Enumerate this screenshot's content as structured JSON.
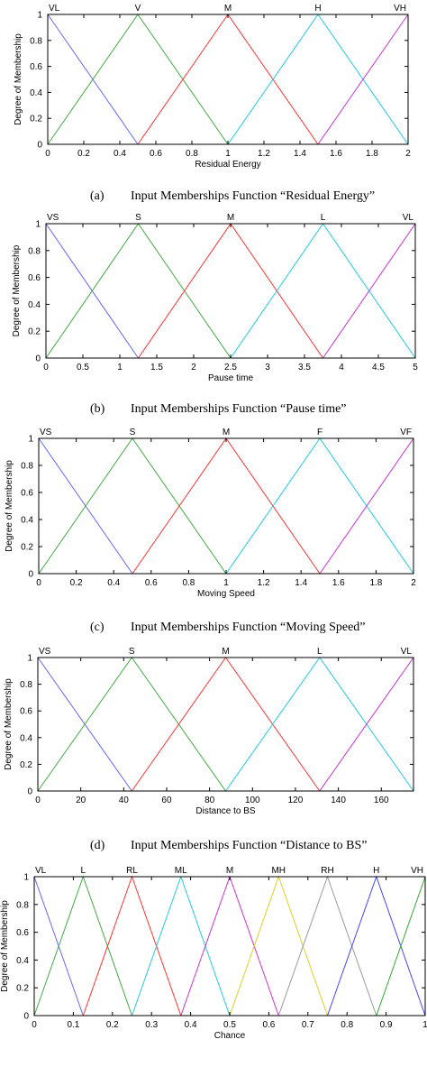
{
  "chart_data": [
    {
      "type": "line",
      "caption_id": "(a)",
      "caption_text": "Input Memberships Function “Residual Energy”",
      "xlabel": "Residual Energy",
      "ylabel": "Degree of Membership",
      "xlim": [
        0,
        2
      ],
      "ylim": [
        0,
        1
      ],
      "xticks": [
        0,
        0.2,
        0.4,
        0.6,
        0.8,
        1,
        1.2,
        1.4,
        1.6,
        1.8,
        2
      ],
      "xtick_labels": [
        "0",
        "0.2",
        "0.4",
        "0.6",
        "0.8",
        "1",
        "1.2",
        "1.4",
        "1.6",
        "1.8",
        "2"
      ],
      "yticks": [
        0,
        0.2,
        0.4,
        0.6,
        0.8,
        1
      ],
      "ytick_labels": [
        "0",
        "0.2",
        "0.4",
        "0.6",
        "0.8",
        "1"
      ],
      "series": [
        {
          "name": "VL",
          "color": "#6666ff",
          "x": [
            0,
            0.5,
            2
          ],
          "y": [
            1,
            0,
            0
          ]
        },
        {
          "name": "V",
          "color": "#44aa44",
          "x": [
            0,
            0.5,
            1,
            2
          ],
          "y": [
            0,
            1,
            0,
            0
          ]
        },
        {
          "name": "M",
          "color": "#ff3333",
          "x": [
            0,
            0.5,
            1,
            1.5,
            2
          ],
          "y": [
            0,
            0,
            1,
            0,
            0
          ]
        },
        {
          "name": "H",
          "color": "#22ccdd",
          "x": [
            0,
            1,
            1.5,
            2
          ],
          "y": [
            0,
            0,
            1,
            0
          ]
        },
        {
          "name": "VH",
          "color": "#cc33cc",
          "x": [
            0,
            1.5,
            2
          ],
          "y": [
            0,
            0,
            1
          ]
        }
      ]
    },
    {
      "type": "line",
      "caption_id": "(b)",
      "caption_text": "Input Memberships Function “Pause time”",
      "xlabel": "Pause time",
      "ylabel": "Degree of Membership",
      "xlim": [
        0,
        5
      ],
      "ylim": [
        0,
        1
      ],
      "xticks": [
        0,
        0.5,
        1,
        1.5,
        2,
        2.5,
        3,
        3.5,
        4,
        4.5,
        5
      ],
      "xtick_labels": [
        "0",
        "0.5",
        "1",
        "1.5",
        "2",
        "2.5",
        "3",
        "3.5",
        "4",
        "4.5",
        "5"
      ],
      "yticks": [
        0,
        0.2,
        0.4,
        0.6,
        0.8,
        1
      ],
      "ytick_labels": [
        "0",
        "0.2",
        "0.4",
        "0.6",
        "0.8",
        "1"
      ],
      "series": [
        {
          "name": "VS",
          "color": "#6666ff",
          "x": [
            0,
            1.25,
            5
          ],
          "y": [
            1,
            0,
            0
          ]
        },
        {
          "name": "S",
          "color": "#44aa44",
          "x": [
            0,
            1.25,
            2.5,
            5
          ],
          "y": [
            0,
            1,
            0,
            0
          ]
        },
        {
          "name": "M",
          "color": "#ff3333",
          "x": [
            0,
            1.25,
            2.5,
            3.75,
            5
          ],
          "y": [
            0,
            0,
            1,
            0,
            0
          ]
        },
        {
          "name": "L",
          "color": "#22ccdd",
          "x": [
            0,
            2.5,
            3.75,
            5
          ],
          "y": [
            0,
            0,
            1,
            0
          ]
        },
        {
          "name": "VL",
          "color": "#cc33cc",
          "x": [
            0,
            3.75,
            5
          ],
          "y": [
            0,
            0,
            1
          ]
        }
      ]
    },
    {
      "type": "line",
      "caption_id": "(c)",
      "caption_text": "Input Memberships Function “Moving Speed”",
      "xlabel": "Moving Speed",
      "ylabel": "Degree of Membership",
      "xlim": [
        0,
        2
      ],
      "ylim": [
        0,
        1
      ],
      "xticks": [
        0,
        0.2,
        0.4,
        0.6,
        0.8,
        1,
        1.2,
        1.4,
        1.6,
        1.8,
        2
      ],
      "xtick_labels": [
        "0",
        "0.2",
        "0.4",
        "0.6",
        "0.8",
        "1",
        "1.2",
        "1.4",
        "1.6",
        "1.8",
        "2"
      ],
      "yticks": [
        0,
        0.2,
        0.4,
        0.6,
        0.8,
        1
      ],
      "ytick_labels": [
        "0",
        "0.2",
        "0.4",
        "0.6",
        "0.8",
        "1"
      ],
      "series": [
        {
          "name": "VS",
          "color": "#6666ff",
          "x": [
            0,
            0.5,
            2
          ],
          "y": [
            1,
            0,
            0
          ]
        },
        {
          "name": "S",
          "color": "#44aa44",
          "x": [
            0,
            0.5,
            1,
            2
          ],
          "y": [
            0,
            1,
            0,
            0
          ]
        },
        {
          "name": "M",
          "color": "#ff3333",
          "x": [
            0,
            0.5,
            1,
            1.5,
            2
          ],
          "y": [
            0,
            0,
            1,
            0,
            0
          ]
        },
        {
          "name": "F",
          "color": "#22ccdd",
          "x": [
            0,
            1,
            1.5,
            2
          ],
          "y": [
            0,
            0,
            1,
            0
          ]
        },
        {
          "name": "VF",
          "color": "#cc33cc",
          "x": [
            0,
            1.5,
            2
          ],
          "y": [
            0,
            0,
            1
          ]
        }
      ]
    },
    {
      "type": "line",
      "caption_id": "(d)",
      "caption_text": "Input Memberships Function “Distance to BS”",
      "xlabel": "Distance to BS",
      "ylabel": "Degree of Membership",
      "xlim": [
        0,
        175
      ],
      "ylim": [
        0,
        1
      ],
      "xticks": [
        0,
        20,
        40,
        60,
        80,
        100,
        120,
        140,
        160
      ],
      "xtick_labels": [
        "0",
        "20",
        "40",
        "60",
        "80",
        "100",
        "120",
        "140",
        "160"
      ],
      "yticks": [
        0,
        0.2,
        0.4,
        0.6,
        0.8,
        1
      ],
      "ytick_labels": [
        "0",
        "0.2",
        "0.4",
        "0.6",
        "0.8",
        "1"
      ],
      "series": [
        {
          "name": "VS",
          "color": "#6666ff",
          "x": [
            0,
            43.75,
            175
          ],
          "y": [
            1,
            0,
            0
          ]
        },
        {
          "name": "S",
          "color": "#44aa44",
          "x": [
            0,
            43.75,
            87.5,
            175
          ],
          "y": [
            0,
            1,
            0,
            0
          ]
        },
        {
          "name": "M",
          "color": "#ff3333",
          "x": [
            0,
            43.75,
            87.5,
            131.25,
            175
          ],
          "y": [
            0,
            0,
            1,
            0,
            0
          ]
        },
        {
          "name": "L",
          "color": "#22ccdd",
          "x": [
            0,
            87.5,
            131.25,
            175
          ],
          "y": [
            0,
            0,
            1,
            0
          ]
        },
        {
          "name": "VL",
          "color": "#cc33cc",
          "x": [
            0,
            131.25,
            175
          ],
          "y": [
            0,
            0,
            1
          ]
        }
      ]
    },
    {
      "type": "line",
      "caption_id": "",
      "caption_text": "",
      "xlabel": "Chance",
      "ylabel": "Degree of Membership",
      "xlim": [
        0,
        1
      ],
      "ylim": [
        0,
        1
      ],
      "xticks": [
        0,
        0.1,
        0.2,
        0.3,
        0.4,
        0.5,
        0.6,
        0.7,
        0.8,
        0.9,
        1
      ],
      "xtick_labels": [
        "0",
        "0.1",
        "0.2",
        "0.3",
        "0.4",
        "0.5",
        "0.6",
        "0.7",
        "0.8",
        "0.9",
        "1"
      ],
      "yticks": [
        0,
        0.2,
        0.4,
        0.6,
        0.8,
        1
      ],
      "ytick_labels": [
        "0",
        "0.2",
        "0.4",
        "0.6",
        "0.8",
        "1"
      ],
      "series": [
        {
          "name": "VL",
          "color": "#6666ff",
          "x": [
            0,
            0.125,
            1
          ],
          "y": [
            1,
            0,
            0
          ]
        },
        {
          "name": "L",
          "color": "#44aa44",
          "x": [
            0,
            0.125,
            0.25,
            1
          ],
          "y": [
            0,
            1,
            0,
            0
          ]
        },
        {
          "name": "RL",
          "color": "#ff3333",
          "x": [
            0,
            0.125,
            0.25,
            0.375,
            1
          ],
          "y": [
            0,
            0,
            1,
            0,
            0
          ]
        },
        {
          "name": "ML",
          "color": "#22ccdd",
          "x": [
            0,
            0.25,
            0.375,
            0.5,
            1
          ],
          "y": [
            0,
            0,
            1,
            0,
            0
          ]
        },
        {
          "name": "M",
          "color": "#cc33cc",
          "x": [
            0,
            0.375,
            0.5,
            0.625,
            1
          ],
          "y": [
            0,
            0,
            1,
            0,
            0
          ]
        },
        {
          "name": "MH",
          "color": "#e0d020",
          "x": [
            0,
            0.5,
            0.625,
            0.75,
            1
          ],
          "y": [
            0,
            0,
            1,
            0,
            0
          ]
        },
        {
          "name": "RH",
          "color": "#999999",
          "x": [
            0,
            0.625,
            0.75,
            0.875,
            1
          ],
          "y": [
            0,
            0,
            1,
            0,
            0
          ]
        },
        {
          "name": "H",
          "color": "#4444ff",
          "x": [
            0,
            0.75,
            0.875,
            1
          ],
          "y": [
            0,
            0,
            1,
            0
          ]
        },
        {
          "name": "VH",
          "color": "#33aa33",
          "x": [
            0,
            0.875,
            1
          ],
          "y": [
            0,
            0,
            1
          ]
        }
      ]
    }
  ]
}
